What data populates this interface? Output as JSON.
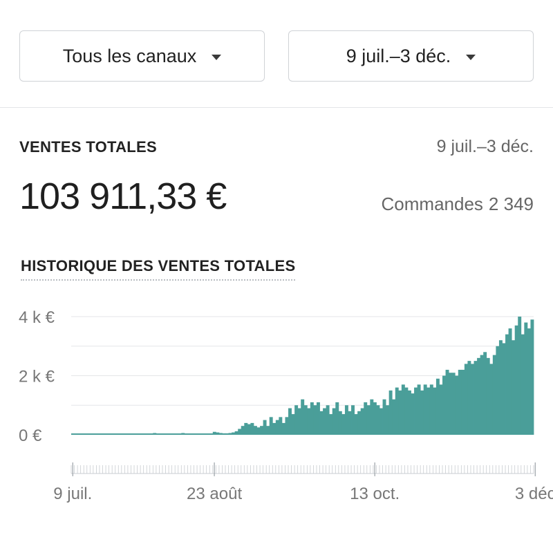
{
  "filters": {
    "channel": "Tous les canaux",
    "date_range": "9 juil.–3 déc."
  },
  "summary": {
    "title": "VENTES TOTALES",
    "range": "9 juil.–3 déc.",
    "total": "103 911,33 €",
    "orders_label": "Commandes",
    "orders_value": "2 349"
  },
  "history": {
    "title": "HISTORIQUE DES VENTES TOTALES"
  },
  "colors": {
    "bar": "#4a9e99",
    "grid": "#e4e6e8",
    "tick": "#c8ccd0"
  },
  "chart_data": {
    "type": "bar",
    "title": "",
    "xlabel": "",
    "ylabel": "",
    "y_unit": "€",
    "ylim": [
      0,
      4000
    ],
    "y_tick_labels": [
      "4 k €",
      "2 k €",
      "0 €"
    ],
    "y_tick_values": [
      4000,
      2000,
      0
    ],
    "x_tick_labels": [
      "9 juil.",
      "23 août",
      "13 oct.",
      "3 déc"
    ],
    "x_tick_index": [
      0,
      45,
      96,
      147
    ],
    "grid": true,
    "values": [
      30,
      30,
      30,
      30,
      30,
      30,
      40,
      30,
      30,
      30,
      30,
      30,
      30,
      30,
      30,
      30,
      30,
      30,
      30,
      30,
      30,
      30,
      30,
      30,
      30,
      30,
      60,
      30,
      30,
      30,
      30,
      30,
      30,
      30,
      30,
      60,
      30,
      30,
      30,
      30,
      30,
      30,
      30,
      30,
      30,
      100,
      80,
      60,
      50,
      50,
      60,
      80,
      120,
      200,
      300,
      400,
      360,
      400,
      300,
      250,
      300,
      500,
      300,
      600,
      400,
      500,
      600,
      400,
      600,
      900,
      700,
      1000,
      900,
      1200,
      1000,
      900,
      1100,
      1000,
      1100,
      800,
      900,
      1000,
      700,
      900,
      1100,
      800,
      700,
      1000,
      800,
      1000,
      700,
      800,
      900,
      1100,
      1000,
      1200,
      1100,
      1000,
      900,
      1200,
      1000,
      1500,
      1200,
      1600,
      1500,
      1700,
      1600,
      1500,
      1400,
      1600,
      1700,
      1500,
      1700,
      1600,
      1700,
      1600,
      1900,
      1700,
      2000,
      2200,
      2100,
      2100,
      2000,
      2200,
      2200,
      2400,
      2500,
      2400,
      2500,
      2600,
      2700,
      2800,
      2600,
      2400,
      2700,
      3000,
      3200,
      3100,
      3400,
      3600,
      3200,
      3700,
      4000,
      3400,
      3800,
      3600,
      3900
    ]
  }
}
